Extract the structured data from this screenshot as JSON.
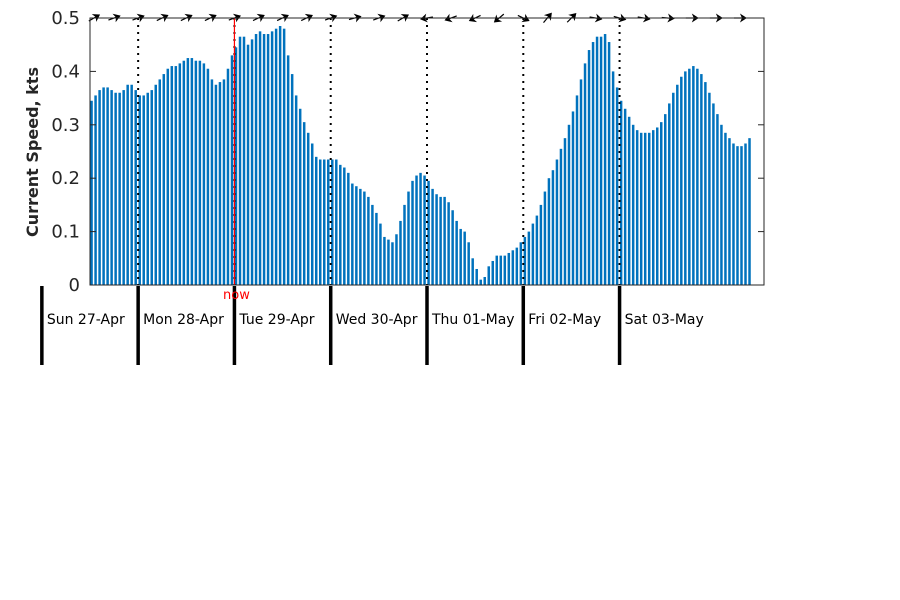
{
  "chart_data": {
    "type": "bar",
    "ylabel": "Current Speed, kts",
    "ylim": [
      0,
      0.5
    ],
    "yticks": [
      "0",
      "0.1",
      "0.2",
      "0.3",
      "0.4",
      "0.5"
    ],
    "ytick_values": [
      0,
      0.1,
      0.2,
      0.3,
      0.4,
      0.5
    ],
    "days": [
      "Sun 27-Apr",
      "Mon 28-Apr",
      "Tue 29-Apr",
      "Wed 30-Apr",
      "Thu 01-May",
      "Fri 02-May",
      "Sat 03-May"
    ],
    "x_start_hour": 12,
    "x_end_hour": 180,
    "bar_interval_hours": 1,
    "now_label": "now",
    "now_hour": 48,
    "values": [
      0.345,
      0.355,
      0.365,
      0.37,
      0.37,
      0.365,
      0.36,
      0.36,
      0.365,
      0.375,
      0.375,
      0.365,
      0.355,
      0.355,
      0.36,
      0.365,
      0.375,
      0.385,
      0.395,
      0.405,
      0.41,
      0.41,
      0.415,
      0.42,
      0.425,
      0.425,
      0.42,
      0.42,
      0.415,
      0.405,
      0.385,
      0.375,
      0.38,
      0.385,
      0.405,
      0.43,
      0.445,
      0.465,
      0.465,
      0.45,
      0.46,
      0.47,
      0.475,
      0.47,
      0.47,
      0.475,
      0.48,
      0.485,
      0.48,
      0.43,
      0.395,
      0.355,
      0.33,
      0.305,
      0.285,
      0.265,
      0.24,
      0.235,
      0.235,
      0.235,
      0.235,
      0.235,
      0.225,
      0.22,
      0.21,
      0.19,
      0.185,
      0.18,
      0.175,
      0.165,
      0.15,
      0.135,
      0.115,
      0.09,
      0.085,
      0.08,
      0.095,
      0.12,
      0.15,
      0.175,
      0.195,
      0.205,
      0.21,
      0.205,
      0.195,
      0.18,
      0.17,
      0.165,
      0.165,
      0.155,
      0.14,
      0.12,
      0.105,
      0.1,
      0.08,
      0.05,
      0.03,
      0.01,
      0.015,
      0.035,
      0.045,
      0.055,
      0.055,
      0.055,
      0.06,
      0.065,
      0.07,
      0.08,
      0.09,
      0.1,
      0.115,
      0.13,
      0.15,
      0.175,
      0.2,
      0.215,
      0.235,
      0.255,
      0.275,
      0.3,
      0.325,
      0.355,
      0.385,
      0.415,
      0.44,
      0.455,
      0.465,
      0.465,
      0.47,
      0.455,
      0.4,
      0.37,
      0.345,
      0.33,
      0.315,
      0.3,
      0.29,
      0.285,
      0.285,
      0.285,
      0.29,
      0.295,
      0.305,
      0.32,
      0.34,
      0.36,
      0.375,
      0.39,
      0.4,
      0.405,
      0.41,
      0.405,
      0.395,
      0.38,
      0.36,
      0.34,
      0.32,
      0.3,
      0.285,
      0.275,
      0.265,
      0.26,
      0.26,
      0.265,
      0.275
    ],
    "direction_arrows": [
      {
        "hour": 13,
        "dir_deg": 60
      },
      {
        "hour": 18,
        "dir_deg": 70
      },
      {
        "hour": 24,
        "dir_deg": 70
      },
      {
        "hour": 30,
        "dir_deg": 65
      },
      {
        "hour": 36,
        "dir_deg": 65
      },
      {
        "hour": 42,
        "dir_deg": 65
      },
      {
        "hour": 48,
        "dir_deg": 70
      },
      {
        "hour": 54,
        "dir_deg": 65
      },
      {
        "hour": 60,
        "dir_deg": 65
      },
      {
        "hour": 66,
        "dir_deg": 65
      },
      {
        "hour": 72,
        "dir_deg": 70
      },
      {
        "hour": 78,
        "dir_deg": 75
      },
      {
        "hour": 84,
        "dir_deg": 70
      },
      {
        "hour": 90,
        "dir_deg": 60
      },
      {
        "hour": 96,
        "dir_deg": 260
      },
      {
        "hour": 102,
        "dir_deg": 250
      },
      {
        "hour": 108,
        "dir_deg": 245
      },
      {
        "hour": 114,
        "dir_deg": 230
      },
      {
        "hour": 120,
        "dir_deg": 115
      },
      {
        "hour": 126,
        "dir_deg": 40
      },
      {
        "hour": 132,
        "dir_deg": 45
      },
      {
        "hour": 138,
        "dir_deg": 100
      },
      {
        "hour": 144,
        "dir_deg": 105
      },
      {
        "hour": 150,
        "dir_deg": 100
      },
      {
        "hour": 156,
        "dir_deg": 95
      },
      {
        "hour": 162,
        "dir_deg": 90
      },
      {
        "hour": 168,
        "dir_deg": 90
      },
      {
        "hour": 174,
        "dir_deg": 90
      }
    ],
    "colors": {
      "bar": "#0072bd",
      "now": "#ff0000",
      "axis": "#262626"
    },
    "grid": false
  }
}
